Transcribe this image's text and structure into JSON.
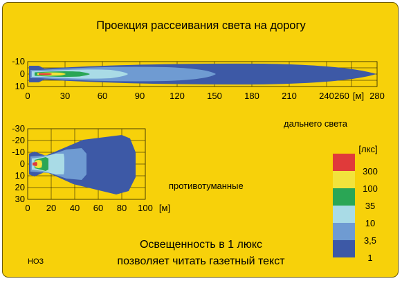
{
  "title": "Проекция рассеивания света на дорогу",
  "high_beam": {
    "label": "дальнего света",
    "unit": "[м]",
    "x_ticks": [
      "0",
      "30",
      "60",
      "90",
      "120",
      "150",
      "180",
      "210",
      "240",
      "260",
      "280"
    ],
    "y_ticks": [
      "-10",
      "0",
      "10"
    ]
  },
  "fog_lights": {
    "label": "противотуманные",
    "unit": "[м]",
    "x_ticks": [
      "0",
      "20",
      "40",
      "60",
      "80",
      "100"
    ],
    "y_ticks": [
      "-30",
      "-20",
      "-10",
      "0",
      "10",
      "20",
      "30"
    ]
  },
  "legend": {
    "header": "[лкс]",
    "items": [
      {
        "label": "300",
        "color": "#e03a3a"
      },
      {
        "label": "100",
        "color": "#f2e33c"
      },
      {
        "label": "35",
        "color": "#2aa655"
      },
      {
        "label": "10",
        "color": "#a9dbe6"
      },
      {
        "label": "3,5",
        "color": "#6f9bd2"
      },
      {
        "label": "1",
        "color": "#3d59a6"
      }
    ]
  },
  "caption_line1": "Освещенность в 1 люкс",
  "caption_line2": "позволяет читать газетный текст",
  "corner_code": "НОЗ",
  "colors": {
    "panel": "#f7d10a",
    "zone_1": "#3d59a6",
    "zone_3_5": "#6f9bd2",
    "zone_10": "#a9dbe6",
    "zone_35": "#2aa655",
    "zone_100": "#f2e33c",
    "zone_300": "#e03a3a"
  }
}
